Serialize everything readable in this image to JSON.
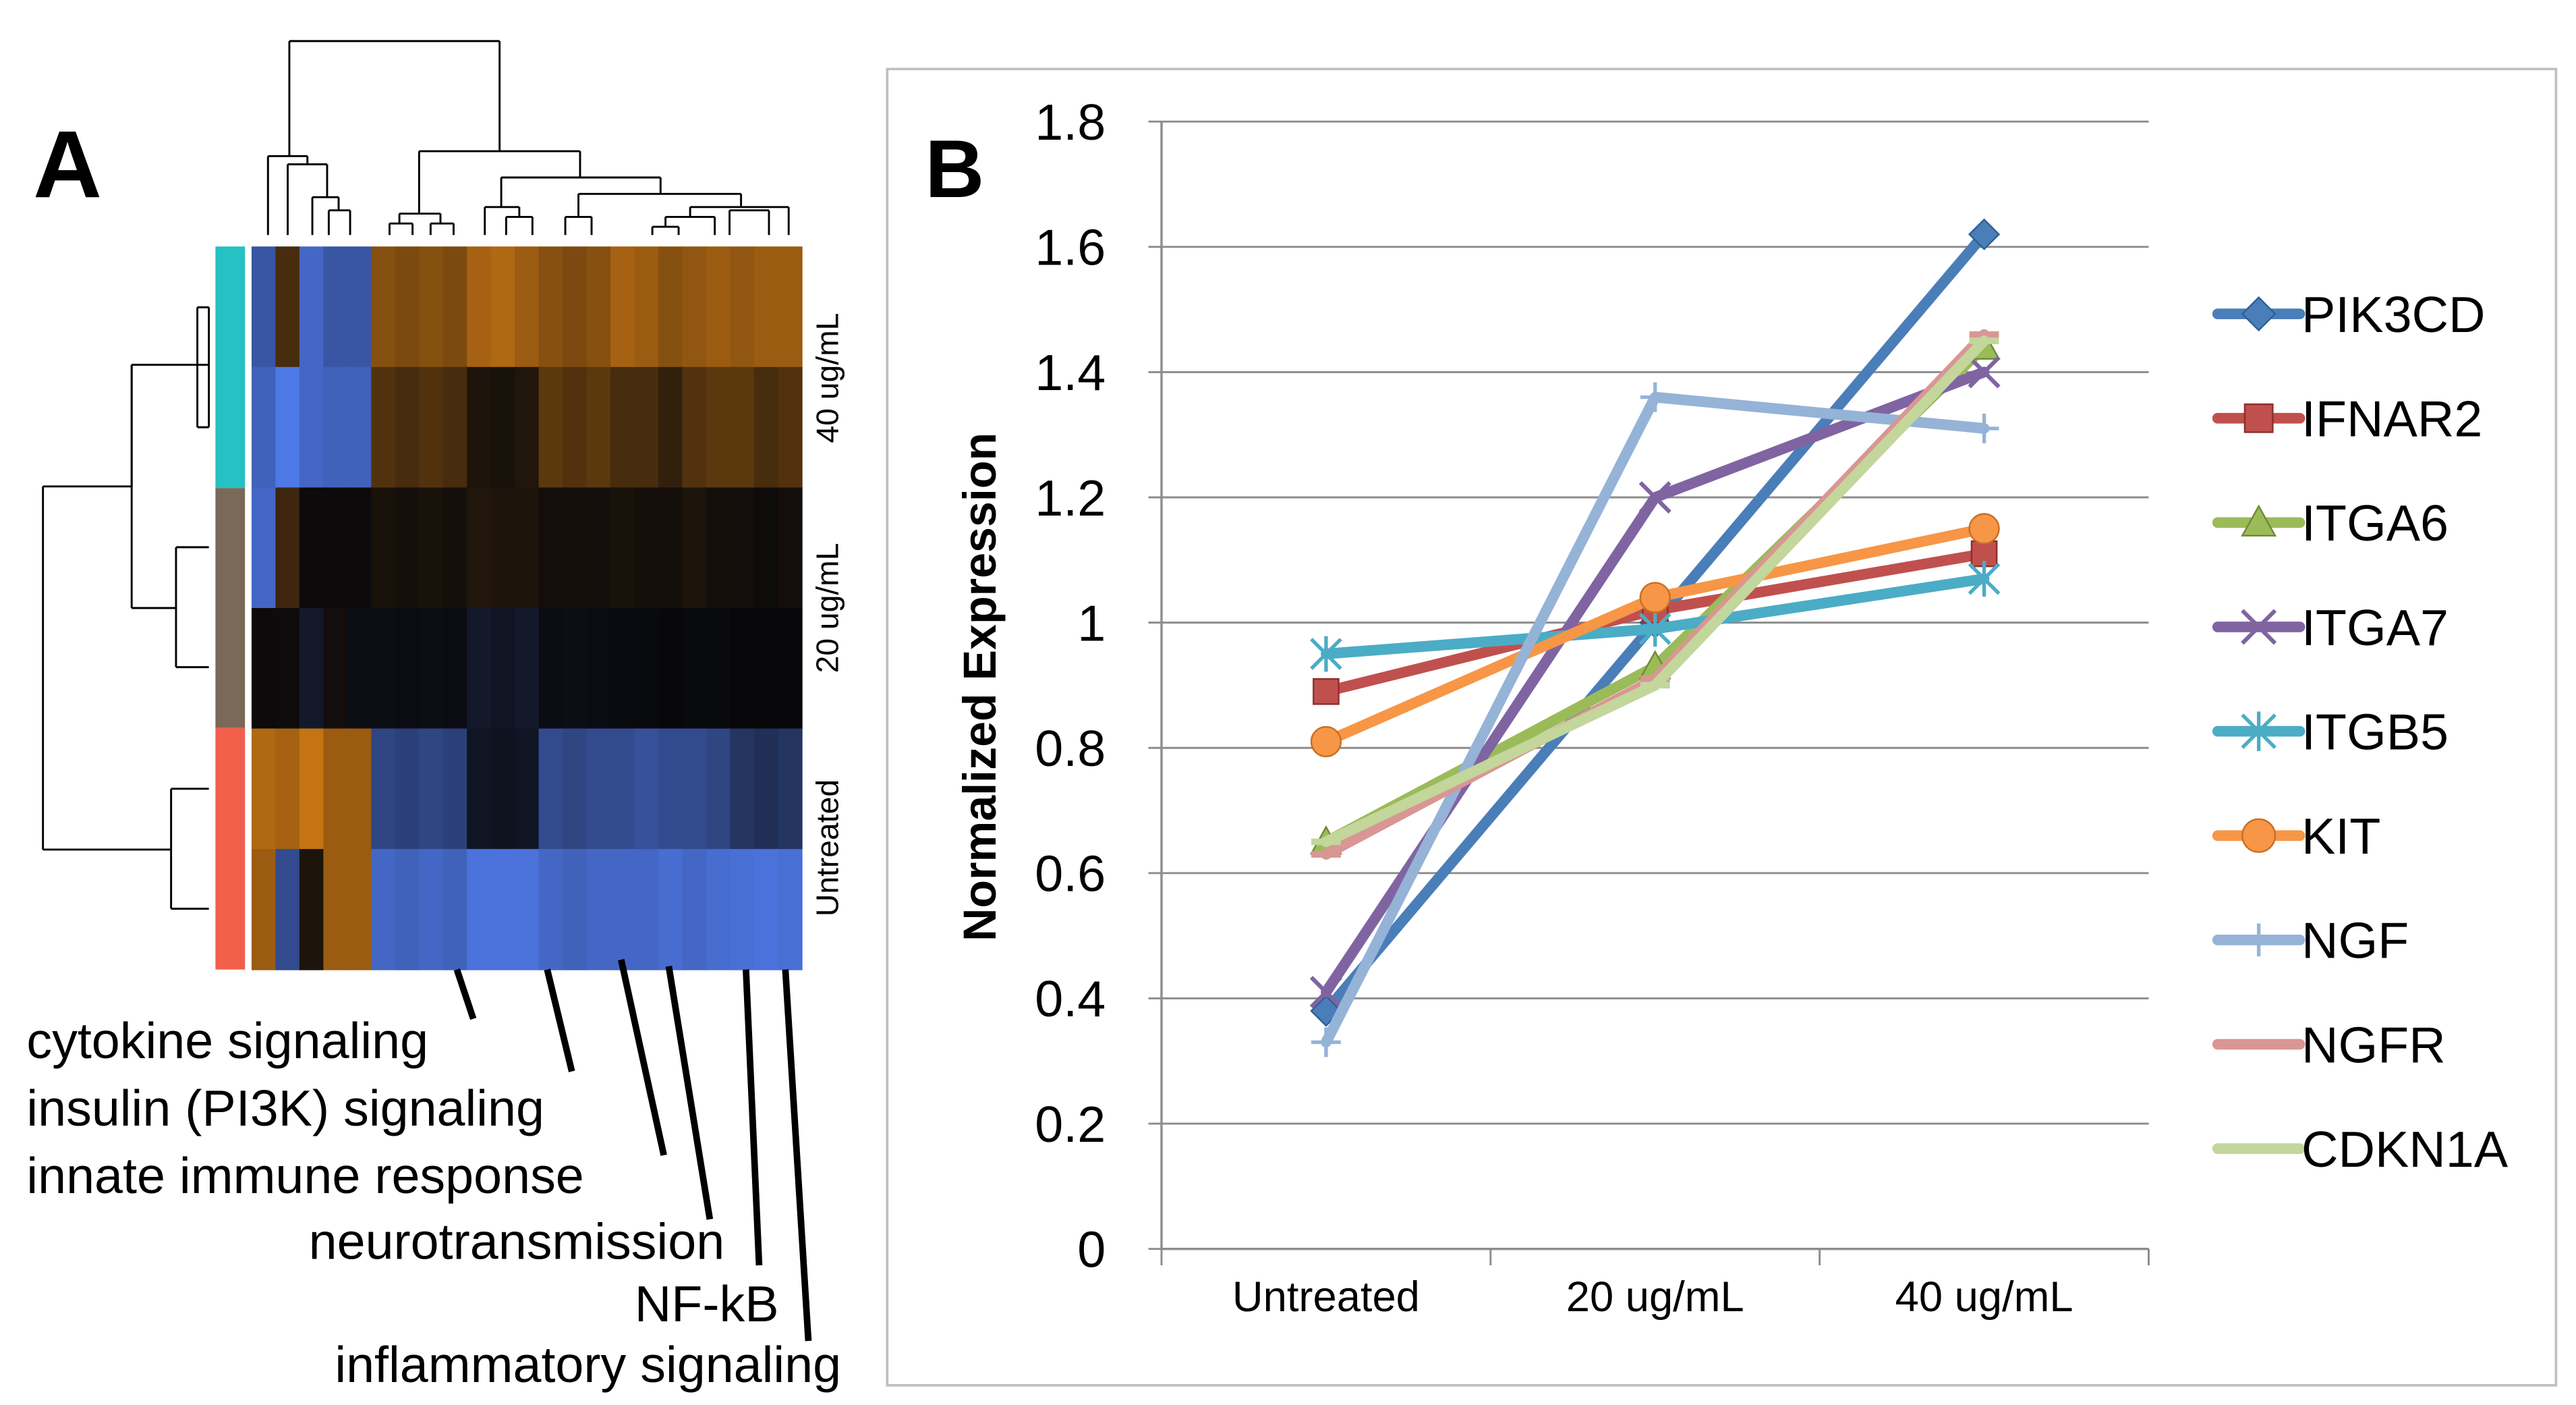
{
  "panel_a": {
    "label": "A",
    "row_labels": [
      "40 ug/mL",
      "20 ug/mL",
      "Untreated"
    ],
    "group_colors": [
      "#26c1c3",
      "#7a6958",
      "#f2604c"
    ],
    "pathway_labels": [
      "cytokine signaling",
      "insulin (PI3K) signaling",
      "innate immune response",
      "neurotransmission",
      "NF-kB",
      "inflammatory signaling"
    ],
    "heatmap_rows": [
      [
        -0.7,
        0.3,
        -0.85,
        -0.7,
        -0.7,
        0.6,
        0.55,
        0.6,
        0.55,
        0.75,
        0.8,
        0.7,
        0.6,
        0.55,
        0.6,
        0.75,
        0.7,
        0.6,
        0.65,
        0.7,
        0.65,
        0.7,
        0.7
      ],
      [
        -0.8,
        -1.0,
        -0.85,
        -0.8,
        -0.8,
        0.35,
        0.3,
        0.35,
        0.3,
        0.1,
        0.08,
        0.12,
        0.4,
        0.35,
        0.4,
        0.3,
        0.3,
        0.2,
        0.35,
        0.4,
        0.4,
        0.3,
        0.35
      ],
      [
        -0.85,
        0.25,
        0.02,
        0.02,
        0.02,
        0.08,
        0.06,
        0.08,
        0.06,
        0.12,
        0.1,
        0.1,
        0.05,
        0.06,
        0.05,
        0.08,
        0.06,
        0.06,
        0.1,
        0.06,
        0.05,
        0.03,
        0.05
      ],
      [
        0.02,
        0.03,
        -0.15,
        0.05,
        -0.05,
        -0.05,
        -0.04,
        -0.05,
        -0.04,
        -0.15,
        -0.12,
        -0.15,
        -0.04,
        -0.05,
        -0.04,
        -0.03,
        -0.02,
        0.0,
        -0.02,
        -0.02,
        0.0,
        0.0,
        0.0
      ],
      [
        0.8,
        0.75,
        0.9,
        0.7,
        0.7,
        -0.55,
        -0.5,
        -0.55,
        -0.5,
        -0.12,
        -0.1,
        -0.12,
        -0.6,
        -0.55,
        -0.6,
        -0.6,
        -0.65,
        -0.6,
        -0.6,
        -0.55,
        -0.4,
        -0.35,
        -0.4
      ],
      [
        0.7,
        -0.6,
        0.1,
        0.7,
        0.7,
        -0.85,
        -0.8,
        -0.85,
        -0.8,
        -0.95,
        -0.95,
        -0.95,
        -0.85,
        -0.8,
        -0.85,
        -0.85,
        -0.85,
        -0.9,
        -0.85,
        -0.9,
        -0.92,
        -0.95,
        -0.92
      ]
    ]
  },
  "panel_b": {
    "label": "B"
  },
  "chart_data": {
    "type": "line",
    "title": "",
    "xlabel": "",
    "ylabel": "Normalized Expression",
    "categories": [
      "Untreated",
      "20 ug/mL",
      "40 ug/mL"
    ],
    "ylim": [
      0,
      1.8
    ],
    "yticks": [
      "0",
      "0.2",
      "0.4",
      "0.6",
      "0.8",
      "1",
      "1.2",
      "1.4",
      "1.6",
      "1.8"
    ],
    "grid": true,
    "legend_position": "right",
    "series": [
      {
        "name": "PIK3CD",
        "values": [
          0.38,
          1.0,
          1.62
        ],
        "color": "#4a7eb8",
        "marker": "diamond"
      },
      {
        "name": "IFNAR2",
        "values": [
          0.89,
          1.02,
          1.11
        ],
        "color": "#c0504d",
        "marker": "square"
      },
      {
        "name": "ITGA6",
        "values": [
          0.65,
          0.93,
          1.44
        ],
        "color": "#9bbb59",
        "marker": "triangle"
      },
      {
        "name": "ITGA7",
        "values": [
          0.41,
          1.2,
          1.4
        ],
        "color": "#8064a2",
        "marker": "x"
      },
      {
        "name": "ITGB5",
        "values": [
          0.95,
          0.99,
          1.07
        ],
        "color": "#4bacc6",
        "marker": "star"
      },
      {
        "name": "KIT",
        "values": [
          0.81,
          1.04,
          1.15
        ],
        "color": "#f79646",
        "marker": "circle"
      },
      {
        "name": "NGF",
        "values": [
          0.33,
          1.36,
          1.31
        ],
        "color": "#95b3d7",
        "marker": "plus"
      },
      {
        "name": "NGFR",
        "values": [
          0.63,
          0.91,
          1.46
        ],
        "color": "#d99694",
        "marker": "dash"
      },
      {
        "name": "CDKN1A",
        "values": [
          0.65,
          0.9,
          1.45
        ],
        "color": "#c3d69b",
        "marker": "dash"
      }
    ]
  }
}
